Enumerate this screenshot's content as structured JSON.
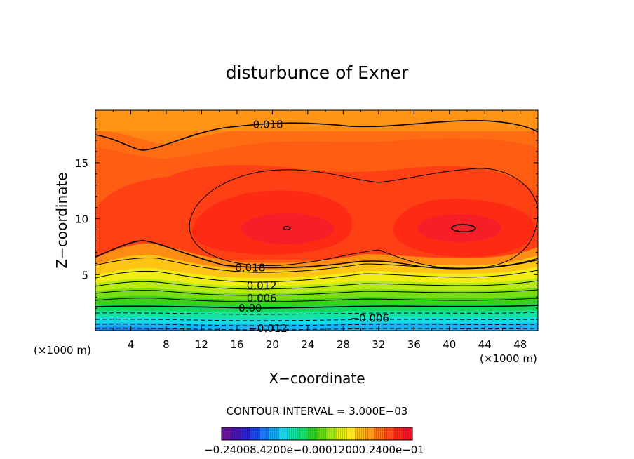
{
  "chart_data": {
    "type": "heatmap",
    "subtype": "filled-contour",
    "title": "disturbunce of Exner",
    "xlabel": "X−coordinate",
    "ylabel": "Z−coordinate",
    "x_unit": "(×1000 m)",
    "x_unit_right": "(×1000 m)",
    "xlim": [
      0,
      50
    ],
    "ylim": [
      0,
      19.7
    ],
    "x_ticks": [
      "4",
      "8",
      "12",
      "16",
      "20",
      "24",
      "28",
      "32",
      "36",
      "40",
      "44",
      "48"
    ],
    "y_ticks": [
      "5",
      "10",
      "15"
    ],
    "contour_interval_label": "CONTOUR INTERVAL = 3.000E−03",
    "contour_labels": [
      {
        "text": "0.018",
        "x": 19.5,
        "z": 18.4
      },
      {
        "text": "0.018",
        "x": 17.5,
        "z": 5.6
      },
      {
        "text": "0.012",
        "x": 18.8,
        "z": 4.0
      },
      {
        "text": "0.006",
        "x": 18.8,
        "z": 2.9
      },
      {
        "text": "0.00",
        "x": 17.5,
        "z": 2.0
      },
      {
        "text": "−0.006",
        "x": 31.0,
        "z": 1.1
      },
      {
        "text": "−0.012",
        "x": 19.5,
        "z": 0.2
      }
    ],
    "colorbar": {
      "label_text": "−0.24008.4200e−0.00012000.2400e−01",
      "range": [
        -0.024,
        0.024
      ],
      "colors": [
        "#6a14a0",
        "#4a14b4",
        "#2a22d2",
        "#1a4aee",
        "#1478f8",
        "#14aaf8",
        "#14d4e8",
        "#14e8a8",
        "#14e070",
        "#2ad22a",
        "#62dc14",
        "#a4e814",
        "#e2f214",
        "#ffe614",
        "#ffc014",
        "#ff9c14",
        "#ff7414",
        "#ff4a14",
        "#ff2a1a",
        "#f8142a"
      ]
    }
  }
}
